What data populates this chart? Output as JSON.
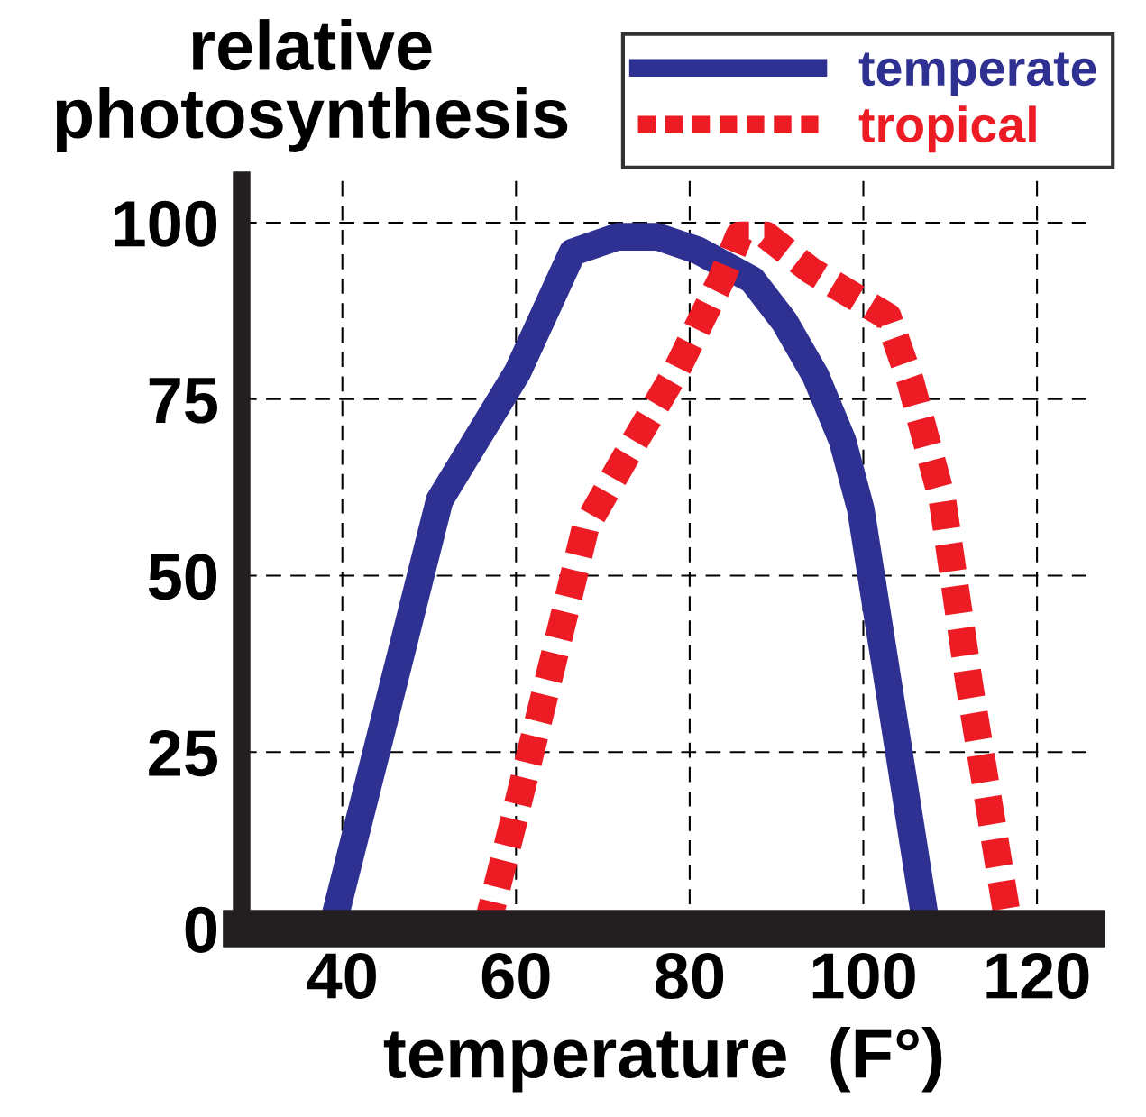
{
  "chart_data": {
    "type": "line",
    "ylabel": "relative\nphotosynthesis",
    "xlabel": "temperature  (F°)",
    "xlim": [
      28.4,
      125.7
    ],
    "ylim": [
      0,
      106
    ],
    "xticks": [
      40,
      60,
      80,
      100,
      120
    ],
    "yticks": [
      0,
      25,
      50,
      75,
      100
    ],
    "grid": true,
    "legend": "top right",
    "marker": "none",
    "series": [
      {
        "name": "temperate",
        "color": "#2e3192",
        "line_style": "solid",
        "x": [
          38.8,
          51.2,
          60.2,
          66.5,
          71.7,
          76.3,
          80.9,
          87.2,
          90.9,
          94.5,
          97.6,
          99.7,
          107.3
        ],
        "values": [
          0,
          60.7,
          78.9,
          95.8,
          98,
          98,
          96.1,
          91.9,
          86,
          78.3,
          69.1,
          59.4,
          0
        ]
      },
      {
        "name": "tropical",
        "color": "#ed1c24",
        "line_style": "dashed",
        "x": [
          56.6,
          59.7,
          64.9,
          68.0,
          72.2,
          78.4,
          83.6,
          85.7,
          88.8,
          94.0,
          102.8,
          105.4,
          109.1,
          112.2,
          114.8,
          116.8
        ],
        "values": [
          0,
          15.1,
          41.1,
          56.8,
          65.9,
          78.9,
          91.9,
          98.2,
          98.2,
          93.2,
          86.7,
          77.6,
          60.7,
          34.6,
          15.1,
          0
        ]
      }
    ]
  }
}
